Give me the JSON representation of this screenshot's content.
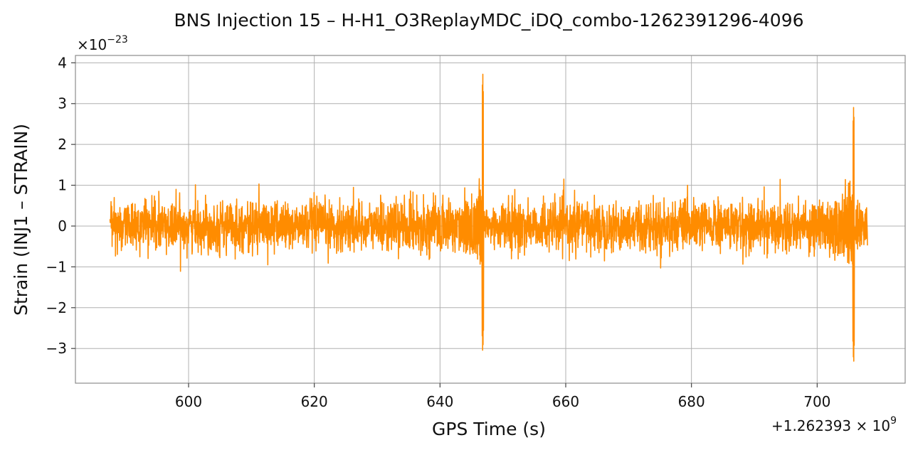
{
  "chart_data": {
    "type": "line",
    "title": "BNS Injection 15 – H-H1_O3ReplayMDC_iDQ_combo-1262391296-4096",
    "xlabel": "GPS Time (s)",
    "ylabel": "Strain (INJ1 – STRAIN)",
    "x_offset_label": "+1.262393 × 10",
    "x_offset_exp": "9",
    "y_scale_label": "×10",
    "y_scale_exp": "−23",
    "xlim": [
      582,
      714
    ],
    "ylim": [
      -3.85,
      4.18
    ],
    "x_ticks": [
      600,
      620,
      640,
      660,
      680,
      700
    ],
    "x_tick_labels": [
      "600",
      "620",
      "640",
      "660",
      "680",
      "700"
    ],
    "y_ticks": [
      -3,
      -2,
      -1,
      0,
      1,
      2,
      3,
      4
    ],
    "y_tick_labels": [
      "−3",
      "−2",
      "−1",
      "0",
      "1",
      "2",
      "3",
      "4"
    ],
    "grid": true,
    "series": [
      {
        "color": "#ff8c00",
        "x_start": 587.5,
        "x_end": 708.0,
        "noise_amplitude": 0.55,
        "noise_envelope_max": 1.15,
        "events": [
          {
            "x": 646.8,
            "peak_max": 3.8,
            "peak_min": -3.15
          },
          {
            "x": 705.8,
            "peak_max": 2.95,
            "peak_min": -3.45
          }
        ]
      }
    ]
  }
}
